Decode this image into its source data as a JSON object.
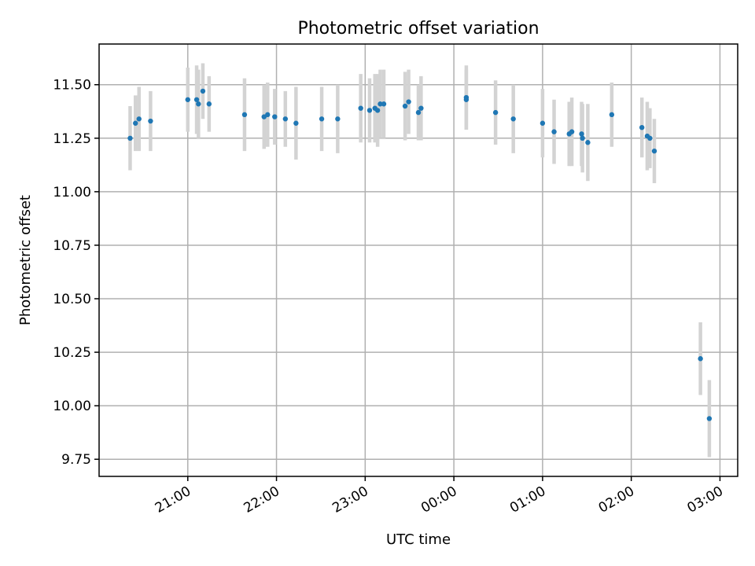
{
  "chart_data": {
    "type": "scatter",
    "title": "Photometric offset variation",
    "xlabel": "UTC time",
    "ylabel": "Photometric offset",
    "x_unit": "hours relative to 00:00 UTC",
    "xlim": [
      -4.0,
      3.2
    ],
    "ylim": [
      9.67,
      11.69
    ],
    "x_ticks": [
      {
        "value": -3,
        "label": "21:00"
      },
      {
        "value": -2,
        "label": "22:00"
      },
      {
        "value": -1,
        "label": "23:00"
      },
      {
        "value": 0,
        "label": "00:00"
      },
      {
        "value": 1,
        "label": "01:00"
      },
      {
        "value": 2,
        "label": "02:00"
      },
      {
        "value": 3,
        "label": "03:00"
      }
    ],
    "y_ticks": [
      {
        "value": 9.75,
        "label": "9.75"
      },
      {
        "value": 10.0,
        "label": "10.00"
      },
      {
        "value": 10.25,
        "label": "10.25"
      },
      {
        "value": 10.5,
        "label": "10.50"
      },
      {
        "value": 10.75,
        "label": "10.75"
      },
      {
        "value": 11.0,
        "label": "11.00"
      },
      {
        "value": 11.25,
        "label": "11.25"
      },
      {
        "value": 11.5,
        "label": "11.50"
      }
    ],
    "grid": true,
    "marker_color": "#1f77b4",
    "errorbar_color": "#d3d3d3",
    "points": [
      {
        "x": -3.65,
        "y": 11.25,
        "err": 0.15
      },
      {
        "x": -3.59,
        "y": 11.32,
        "err": 0.13
      },
      {
        "x": -3.55,
        "y": 11.34,
        "err": 0.15
      },
      {
        "x": -3.42,
        "y": 11.33,
        "err": 0.14
      },
      {
        "x": -3.0,
        "y": 11.43,
        "err": 0.15
      },
      {
        "x": -2.9,
        "y": 11.43,
        "err": 0.16
      },
      {
        "x": -2.88,
        "y": 11.41,
        "err": 0.16
      },
      {
        "x": -2.83,
        "y": 11.47,
        "err": 0.13
      },
      {
        "x": -2.76,
        "y": 11.41,
        "err": 0.13
      },
      {
        "x": -2.36,
        "y": 11.36,
        "err": 0.17
      },
      {
        "x": -2.14,
        "y": 11.35,
        "err": 0.15
      },
      {
        "x": -2.1,
        "y": 11.36,
        "err": 0.15
      },
      {
        "x": -2.02,
        "y": 11.35,
        "err": 0.13
      },
      {
        "x": -1.9,
        "y": 11.34,
        "err": 0.13
      },
      {
        "x": -1.78,
        "y": 11.32,
        "err": 0.17
      },
      {
        "x": -1.49,
        "y": 11.34,
        "err": 0.15
      },
      {
        "x": -1.31,
        "y": 11.34,
        "err": 0.16
      },
      {
        "x": -1.05,
        "y": 11.39,
        "err": 0.16
      },
      {
        "x": -0.95,
        "y": 11.38,
        "err": 0.15
      },
      {
        "x": -0.89,
        "y": 11.39,
        "err": 0.16
      },
      {
        "x": -0.86,
        "y": 11.38,
        "err": 0.17
      },
      {
        "x": -0.83,
        "y": 11.41,
        "err": 0.16
      },
      {
        "x": -0.79,
        "y": 11.41,
        "err": 0.16
      },
      {
        "x": -0.55,
        "y": 11.4,
        "err": 0.16
      },
      {
        "x": -0.51,
        "y": 11.42,
        "err": 0.15
      },
      {
        "x": -0.4,
        "y": 11.37,
        "err": 0.13
      },
      {
        "x": -0.37,
        "y": 11.39,
        "err": 0.15
      },
      {
        "x": 0.14,
        "y": 11.44,
        "err": 0.15
      },
      {
        "x": 0.14,
        "y": 11.43,
        "err": 0.14
      },
      {
        "x": 0.47,
        "y": 11.37,
        "err": 0.15
      },
      {
        "x": 0.67,
        "y": 11.34,
        "err": 0.16
      },
      {
        "x": 1.0,
        "y": 11.32,
        "err": 0.16
      },
      {
        "x": 1.13,
        "y": 11.28,
        "err": 0.15
      },
      {
        "x": 1.3,
        "y": 11.27,
        "err": 0.15
      },
      {
        "x": 1.33,
        "y": 11.28,
        "err": 0.16
      },
      {
        "x": 1.44,
        "y": 11.27,
        "err": 0.15
      },
      {
        "x": 1.45,
        "y": 11.25,
        "err": 0.16
      },
      {
        "x": 1.51,
        "y": 11.23,
        "err": 0.18
      },
      {
        "x": 1.78,
        "y": 11.36,
        "err": 0.15
      },
      {
        "x": 2.12,
        "y": 11.3,
        "err": 0.14
      },
      {
        "x": 2.18,
        "y": 11.26,
        "err": 0.16
      },
      {
        "x": 2.21,
        "y": 11.25,
        "err": 0.14
      },
      {
        "x": 2.26,
        "y": 11.19,
        "err": 0.15
      },
      {
        "x": 2.78,
        "y": 10.22,
        "err": 0.17
      },
      {
        "x": 2.88,
        "y": 9.94,
        "err": 0.18
      }
    ]
  }
}
